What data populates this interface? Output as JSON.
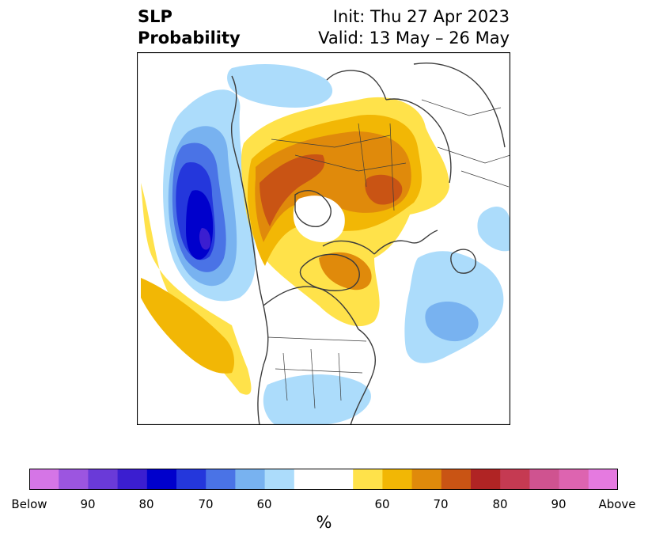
{
  "title": {
    "left_line1": "SLP",
    "left_line2": "Probability",
    "right_line1": "Init: Thu 27 Apr 2023",
    "right_line2": "Valid: 13 May – 26 May"
  },
  "map": {
    "projection": "north-polar-stereographic",
    "coastline_color": "#3c3c3c"
  },
  "colorbar": {
    "colors": [
      "#d575e6",
      "#9c55e0",
      "#6a3ad8",
      "#3b1ed0",
      "#0000cc",
      "#2437dc",
      "#4a73e6",
      "#78b2f0",
      "#acdcfb",
      "#ffffff",
      "#ffffff",
      "#ffe24a",
      "#f2b705",
      "#e08a0b",
      "#c95414",
      "#b02424",
      "#c53a52",
      "#cf5390",
      "#dd64b0",
      "#e57ae0"
    ],
    "tick_labels": [
      "Below",
      "90",
      "80",
      "70",
      "60",
      "60",
      "70",
      "80",
      "90",
      "Above"
    ],
    "unit": "%"
  }
}
